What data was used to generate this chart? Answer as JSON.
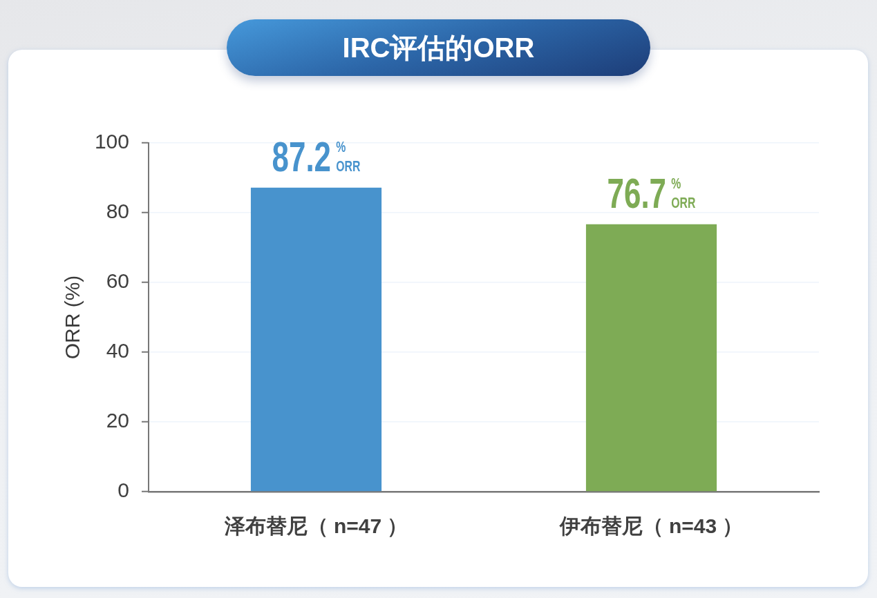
{
  "chart_data": {
    "type": "bar",
    "title": "IRC评估的ORR",
    "ylabel": "ORR (%)",
    "categories": [
      "泽布替尼（ n=47 ）",
      "伊布替尼（ n=43 ）"
    ],
    "values": [
      87.2,
      76.7
    ],
    "colors": [
      "#4893cd",
      "#7eab55"
    ],
    "value_labels": [
      "87.2$^{%}$$_{ORR}$",
      "76.7$^{%}$$_{ORR}$"
    ],
    "ylim": [
      0,
      100
    ],
    "yticks": [
      0,
      20,
      40,
      60,
      80,
      100
    ],
    "grid": "y"
  }
}
